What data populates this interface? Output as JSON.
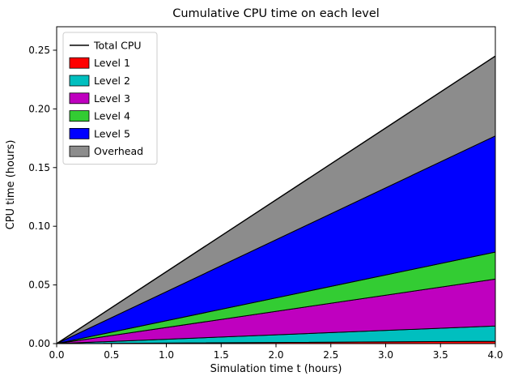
{
  "chart_data": {
    "type": "area",
    "title": "Cumulative CPU time on each level",
    "xlabel": "Simulation time t (hours)",
    "ylabel": "CPU time (hours)",
    "xlim": [
      0,
      4
    ],
    "ylim": [
      0,
      0.27
    ],
    "xticks": [
      0,
      0.5,
      1,
      1.5,
      2,
      2.5,
      3,
      3.5,
      4
    ],
    "yticks": [
      0,
      0.05,
      0.1,
      0.15,
      0.2,
      0.25
    ],
    "grid": false,
    "legend_position": "upper left",
    "x": [
      0,
      4
    ],
    "series": [
      {
        "name": "Level 1",
        "color": "#ff0000",
        "values": [
          0,
          0.002
        ]
      },
      {
        "name": "Level 2",
        "color": "#00bfbf",
        "values": [
          0,
          0.013
        ]
      },
      {
        "name": "Level 3",
        "color": "#bf00bf",
        "values": [
          0,
          0.04
        ]
      },
      {
        "name": "Level 4",
        "color": "#33cc33",
        "values": [
          0,
          0.023
        ]
      },
      {
        "name": "Level 5",
        "color": "#0000ff",
        "values": [
          0,
          0.099
        ]
      },
      {
        "name": "Overhead",
        "color": "#8c8c8c",
        "values": [
          0,
          0.068
        ]
      }
    ],
    "total_line": {
      "name": "Total CPU",
      "color": "#000000",
      "values": [
        0,
        0.245
      ]
    }
  }
}
